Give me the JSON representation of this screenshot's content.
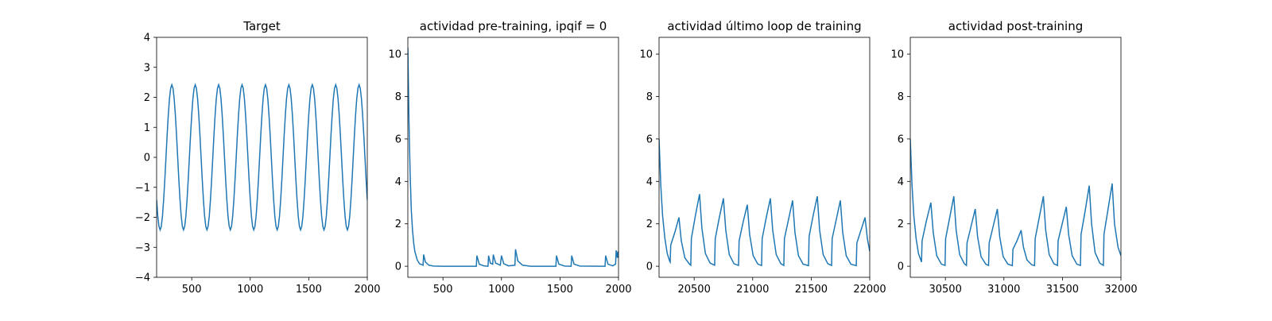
{
  "chart_data": [
    {
      "type": "line",
      "title": "Target",
      "color": "#1f77b4",
      "xlim": [
        200,
        2000
      ],
      "ylim": [
        -4,
        4
      ],
      "xticks": [
        500,
        1000,
        1500,
        2000
      ],
      "yticks": [
        {
          "value": -4,
          "label": "−4"
        },
        {
          "value": -3,
          "label": "−3"
        },
        {
          "value": -2,
          "label": "−2"
        },
        {
          "value": -1,
          "label": "−1"
        },
        0,
        1,
        2,
        3,
        4
      ],
      "x": [
        200,
        210,
        220,
        230,
        240,
        250,
        260,
        270,
        280,
        290,
        300,
        310,
        320,
        330,
        340,
        350,
        360,
        370,
        380,
        390,
        400,
        410,
        420,
        430,
        440,
        450,
        460,
        470,
        480,
        490,
        500,
        510,
        520,
        530,
        540,
        550,
        560,
        570,
        580,
        590,
        600,
        610,
        620,
        630,
        640,
        650,
        660,
        670,
        680,
        690,
        700,
        710,
        720,
        730,
        740,
        750,
        760,
        770,
        780,
        790,
        800,
        810,
        820,
        830,
        840,
        850,
        860,
        870,
        880,
        890,
        900,
        910,
        920,
        930,
        940,
        950,
        960,
        970,
        980,
        990,
        1000,
        1010,
        1020,
        1030,
        1040,
        1050,
        1060,
        1070,
        1080,
        1090,
        1100,
        1110,
        1120,
        1130,
        1140,
        1150,
        1160,
        1170,
        1180,
        1190,
        1200,
        1210,
        1220,
        1230,
        1240,
        1250,
        1260,
        1270,
        1280,
        1290,
        1300,
        1310,
        1320,
        1330,
        1340,
        1350,
        1360,
        1370,
        1380,
        1390,
        1400,
        1410,
        1420,
        1430,
        1440,
        1450,
        1460,
        1470,
        1480,
        1490,
        1500,
        1510,
        1520,
        1530,
        1540,
        1550,
        1560,
        1570,
        1580,
        1590,
        1600,
        1610,
        1620,
        1630,
        1640,
        1650,
        1660,
        1670,
        1680,
        1690,
        1700,
        1710,
        1720,
        1730,
        1740,
        1750,
        1760,
        1770,
        1780,
        1790,
        1800,
        1810,
        1820,
        1830,
        1840,
        1850,
        1860,
        1870,
        1880,
        1890,
        1900,
        1910,
        1920,
        1930,
        1940,
        1950,
        1960,
        1970,
        1980,
        1990,
        2000
      ],
      "values": [
        -1.42,
        -1.96,
        -2.3,
        -2.42,
        -2.3,
        -1.96,
        -1.42,
        -0.75,
        0,
        0.75,
        1.42,
        1.96,
        2.3,
        2.42,
        2.3,
        1.96,
        1.42,
        0.75,
        0,
        -0.75,
        -1.42,
        -1.96,
        -2.3,
        -2.42,
        -2.3,
        -1.96,
        -1.42,
        -0.75,
        0,
        0.75,
        1.42,
        1.96,
        2.3,
        2.42,
        2.3,
        1.96,
        1.42,
        0.75,
        0,
        -0.75,
        -1.42,
        -1.96,
        -2.3,
        -2.42,
        -2.3,
        -1.96,
        -1.42,
        -0.75,
        0,
        0.75,
        1.42,
        1.96,
        2.3,
        2.42,
        2.3,
        1.96,
        1.42,
        0.75,
        0,
        -0.75,
        -1.42,
        -1.96,
        -2.3,
        -2.42,
        -2.3,
        -1.96,
        -1.42,
        -0.75,
        0,
        0.75,
        1.42,
        1.96,
        2.3,
        2.42,
        2.3,
        1.96,
        1.42,
        0.75,
        0,
        -0.75,
        -1.42,
        -1.96,
        -2.3,
        -2.42,
        -2.3,
        -1.96,
        -1.42,
        -0.75,
        0,
        0.75,
        1.42,
        1.96,
        2.3,
        2.42,
        2.3,
        1.96,
        1.42,
        0.75,
        0,
        -0.75,
        -1.42,
        -1.96,
        -2.3,
        -2.42,
        -2.3,
        -1.96,
        -1.42,
        -0.75,
        0,
        0.75,
        1.42,
        1.96,
        2.3,
        2.42,
        2.3,
        1.96,
        1.42,
        0.75,
        0,
        -0.75,
        -1.42,
        -1.96,
        -2.3,
        -2.42,
        -2.3,
        -1.96,
        -1.42,
        -0.75,
        0,
        0.75,
        1.42,
        1.96,
        2.3,
        2.42,
        2.3,
        1.96,
        1.42,
        0.75,
        0,
        -0.75,
        -1.42,
        -1.96,
        -2.3,
        -2.42,
        -2.3,
        -1.96,
        -1.42,
        -0.75,
        0,
        0.75,
        1.42,
        1.96,
        2.3,
        2.42,
        2.3,
        1.96,
        1.42,
        0.75,
        0,
        -0.75,
        -1.42,
        -1.96,
        -2.3,
        -2.42,
        -2.3,
        -1.96,
        -1.42,
        -0.75,
        0,
        0.75,
        1.42,
        1.96,
        2.3,
        2.42,
        2.3,
        1.96,
        1.42,
        0.75,
        0,
        -0.75,
        -1.42
      ]
    },
    {
      "type": "line",
      "title": "actividad pre-training, ipqif = 0",
      "color": "#1f77b4",
      "xlim": [
        200,
        2000
      ],
      "ylim": [
        -0.52,
        10.79
      ],
      "xticks": [
        500,
        1000,
        1500,
        2000
      ],
      "yticks": [
        0,
        2,
        4,
        6,
        8,
        10
      ],
      "x": [
        200,
        205,
        210,
        215,
        220,
        230,
        240,
        250,
        260,
        280,
        300,
        330,
        335,
        350,
        380,
        420,
        500,
        785,
        790,
        810,
        850,
        885,
        890,
        905,
        925,
        930,
        950,
        990,
        1000,
        1020,
        1060,
        1115,
        1120,
        1140,
        1180,
        1250,
        1465,
        1470,
        1490,
        1540,
        1595,
        1600,
        1620,
        1670,
        1885,
        1890,
        1910,
        1950,
        1975,
        1980,
        1990,
        1995,
        2000
      ],
      "values": [
        10.3,
        8.5,
        6.8,
        5.5,
        4.3,
        2.6,
        1.7,
        1.1,
        0.7,
        0.3,
        0.12,
        0.05,
        0.55,
        0.2,
        0.05,
        0.01,
        0,
        0,
        0.5,
        0.1,
        0.02,
        0,
        0.5,
        0.15,
        0.1,
        0.55,
        0.15,
        0.05,
        0.5,
        0.12,
        0.02,
        0.05,
        0.8,
        0.25,
        0.05,
        0,
        0,
        0.5,
        0.1,
        0.01,
        0,
        0.5,
        0.1,
        0.01,
        0,
        0.5,
        0.1,
        0.02,
        0.1,
        0.75,
        0.4,
        0.7,
        0.4
      ]
    },
    {
      "type": "line",
      "title": "actividad último loop de training",
      "color": "#1f77b4",
      "xlim": [
        20200,
        22000
      ],
      "ylim": [
        -0.52,
        10.79
      ],
      "xticks": [
        20500,
        21000,
        21500,
        22000
      ],
      "yticks": [
        0,
        2,
        4,
        6,
        8,
        10
      ],
      "x": [
        20200,
        20215,
        20230,
        20250,
        20270,
        20290,
        20295,
        20300,
        20335,
        20370,
        20390,
        20420,
        20460,
        20471,
        20476,
        20511,
        20546,
        20566,
        20596,
        20636,
        20675,
        20680,
        20715,
        20750,
        20770,
        20800,
        20840,
        20879,
        20884,
        20919,
        20954,
        20974,
        21004,
        21044,
        21076,
        21081,
        21116,
        21151,
        21171,
        21201,
        21241,
        21266,
        21271,
        21306,
        21341,
        21361,
        21391,
        21431,
        21477,
        21482,
        21517,
        21552,
        21572,
        21602,
        21642,
        21674,
        21679,
        21714,
        21749,
        21769,
        21799,
        21839,
        21885,
        21890,
        21925,
        21960,
        21980,
        22000
      ],
      "values": [
        6.0,
        3.8,
        2.4,
        1.3,
        0.6,
        0.25,
        0.2,
        1.0,
        1.6,
        2.3,
        1.2,
        0.4,
        0.1,
        0.05,
        1.3,
        2.4,
        3.4,
        1.8,
        0.6,
        0.15,
        0.05,
        1.3,
        2.3,
        3.2,
        1.7,
        0.55,
        0.12,
        0.04,
        1.2,
        2.1,
        2.9,
        1.5,
        0.5,
        0.1,
        0.04,
        1.3,
        2.3,
        3.2,
        1.7,
        0.55,
        0.12,
        0.04,
        1.3,
        2.2,
        3.1,
        1.6,
        0.5,
        0.1,
        0.03,
        1.4,
        2.4,
        3.3,
        1.7,
        0.55,
        0.12,
        0.04,
        1.3,
        2.2,
        3.1,
        1.6,
        0.5,
        0.1,
        0.03,
        1.1,
        1.7,
        2.3,
        1.3,
        0.7
      ]
    },
    {
      "type": "line",
      "title": "actividad post-training",
      "color": "#1f77b4",
      "xlim": [
        30200,
        32000
      ],
      "ylim": [
        -0.52,
        10.79
      ],
      "xticks": [
        30500,
        31000,
        31500,
        32000
      ],
      "yticks": [
        0,
        2,
        4,
        6,
        8,
        10
      ],
      "x": [
        30200,
        30215,
        30230,
        30250,
        30270,
        30296,
        30301,
        30336,
        30376,
        30396,
        30426,
        30466,
        30497,
        30502,
        30537,
        30572,
        30592,
        30622,
        30662,
        30680,
        30685,
        30720,
        30755,
        30775,
        30805,
        30845,
        30869,
        30874,
        30909,
        30944,
        30964,
        30994,
        31034,
        31072,
        31077,
        31112,
        31147,
        31167,
        31197,
        31237,
        31262,
        31267,
        31302,
        31337,
        31357,
        31387,
        31427,
        31458,
        31463,
        31498,
        31533,
        31553,
        31583,
        31623,
        31654,
        31659,
        31694,
        31729,
        31749,
        31779,
        31819,
        31850,
        31855,
        31890,
        31925,
        31945,
        31975,
        32000
      ],
      "values": [
        6.0,
        3.8,
        2.4,
        1.3,
        0.6,
        0.2,
        1.2,
        2.1,
        3.0,
        1.6,
        0.5,
        0.1,
        0.04,
        1.3,
        2.3,
        3.3,
        1.7,
        0.55,
        0.12,
        0.04,
        1.1,
        1.9,
        2.7,
        1.4,
        0.45,
        0.1,
        0.04,
        1.1,
        1.9,
        2.7,
        1.4,
        0.45,
        0.1,
        0.03,
        0.8,
        1.2,
        1.7,
        0.9,
        0.3,
        0.07,
        0.03,
        1.3,
        2.3,
        3.3,
        1.7,
        0.55,
        0.12,
        0.04,
        1.2,
        2.0,
        2.8,
        1.5,
        0.5,
        0.1,
        0.04,
        1.5,
        2.6,
        3.8,
        2.0,
        0.65,
        0.15,
        0.04,
        1.5,
        2.7,
        3.9,
        2.0,
        0.9,
        0.5
      ]
    }
  ]
}
